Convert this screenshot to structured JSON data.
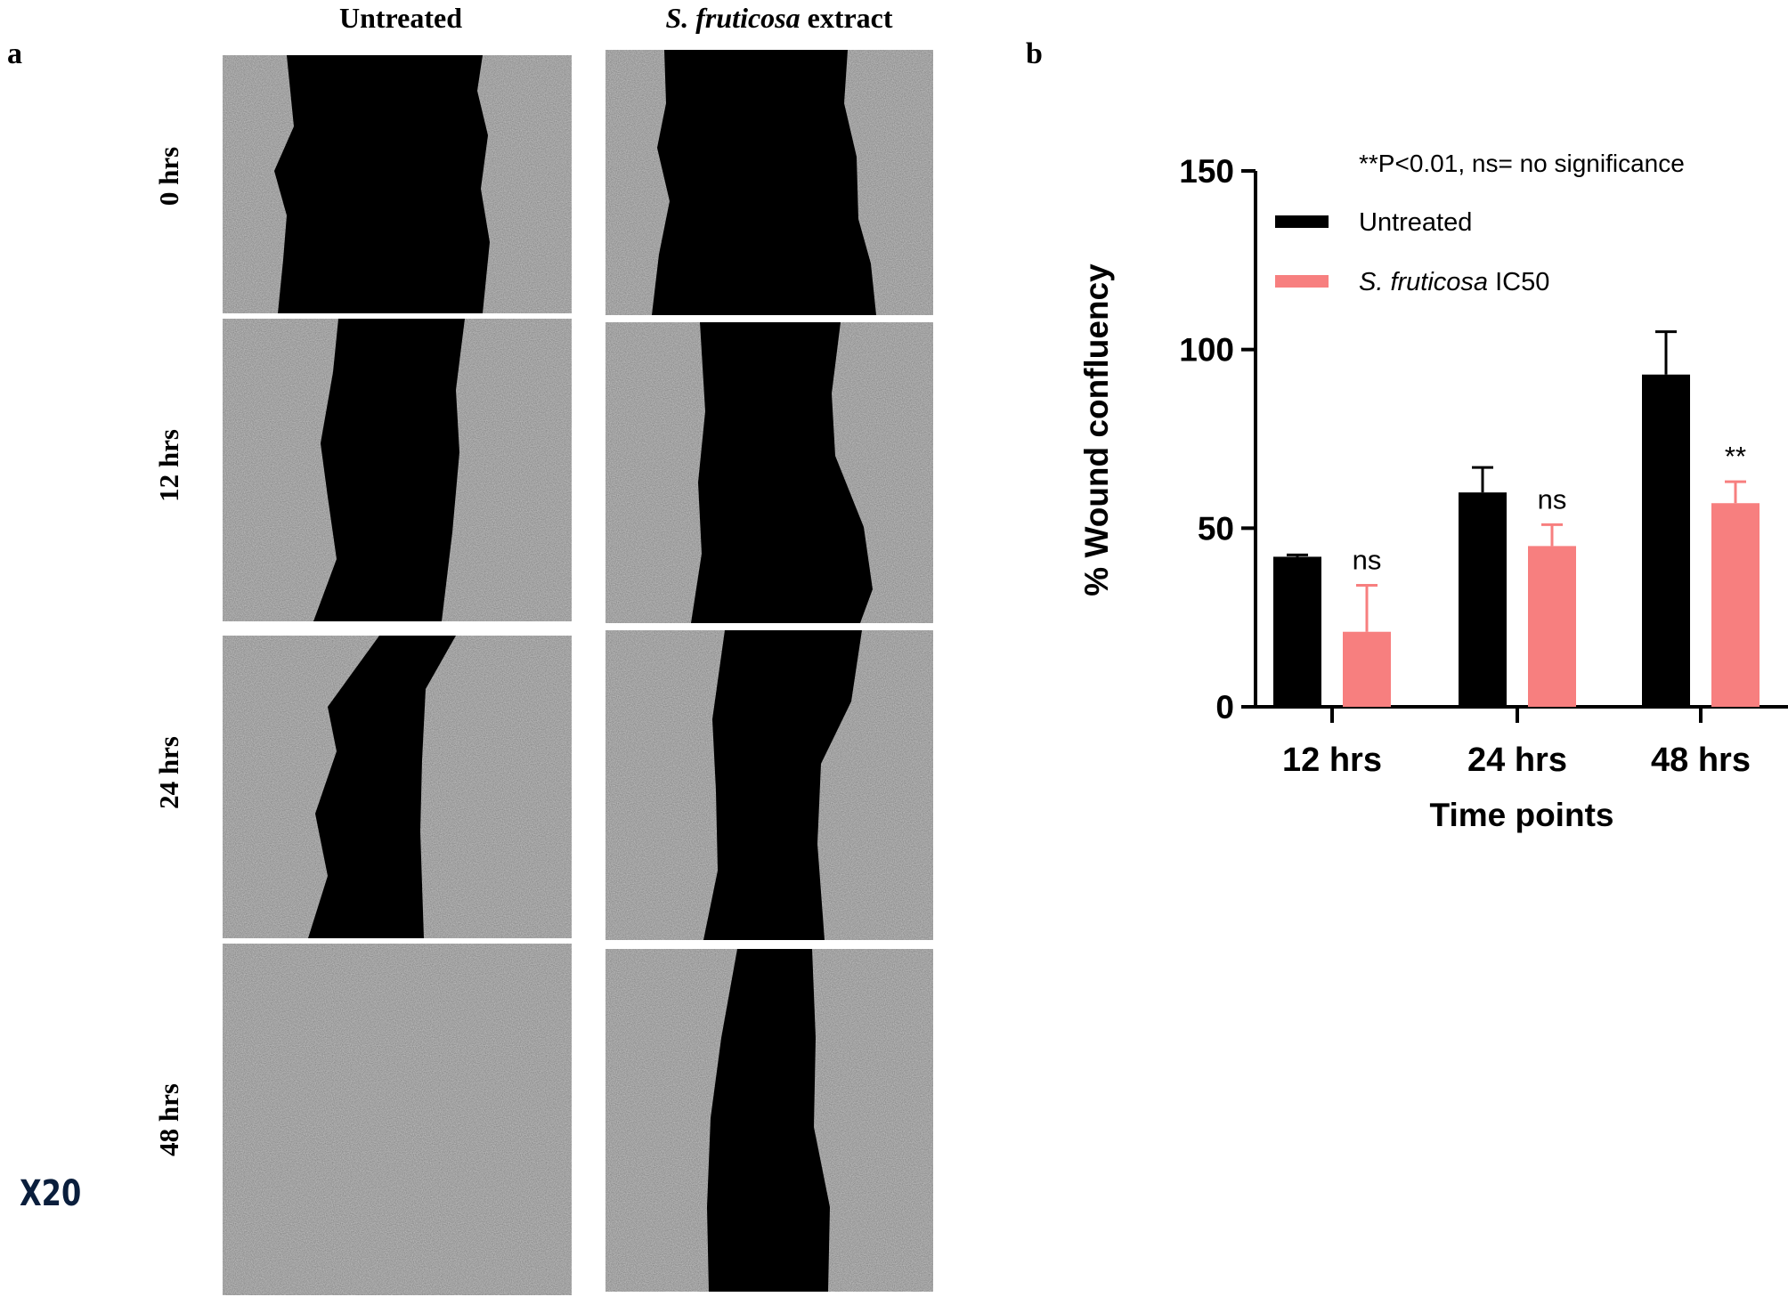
{
  "panel_a": {
    "letter": "a",
    "columns": [
      "Untreated",
      "extract"
    ],
    "columns_italic_prefix": [
      "",
      "S. fruticosa"
    ],
    "rows": [
      "0 hrs",
      "12 hrs",
      "24 hrs",
      "48 hrs"
    ],
    "magnification": "X20"
  },
  "panel_b": {
    "letter": "b"
  },
  "colors": {
    "untreated": "#000000",
    "treated": "#f77f7f",
    "wound": "#000000",
    "cells": "#8a8a8a"
  },
  "chart_data": {
    "type": "bar",
    "categories": [
      "12 hrs",
      "24 hrs",
      "48 hrs"
    ],
    "series": [
      {
        "name": "Untreated",
        "values": [
          42,
          60,
          93
        ],
        "errors": [
          0.5,
          7,
          12
        ],
        "color": "#000000"
      },
      {
        "name": "IC50",
        "name_italic_prefix": "S. fruticosa",
        "values": [
          21,
          45,
          57
        ],
        "errors": [
          13,
          6,
          6
        ],
        "color": "#f77f7f"
      }
    ],
    "significance": [
      "ns",
      "ns",
      "**"
    ],
    "annotation": "**P<0.01, ns= no significance",
    "xlabel": "Time points",
    "ylabel": "% Wound confluency",
    "ylim": [
      0,
      150
    ],
    "yticks": [
      0,
      50,
      100,
      150
    ],
    "legend": "top-right"
  }
}
